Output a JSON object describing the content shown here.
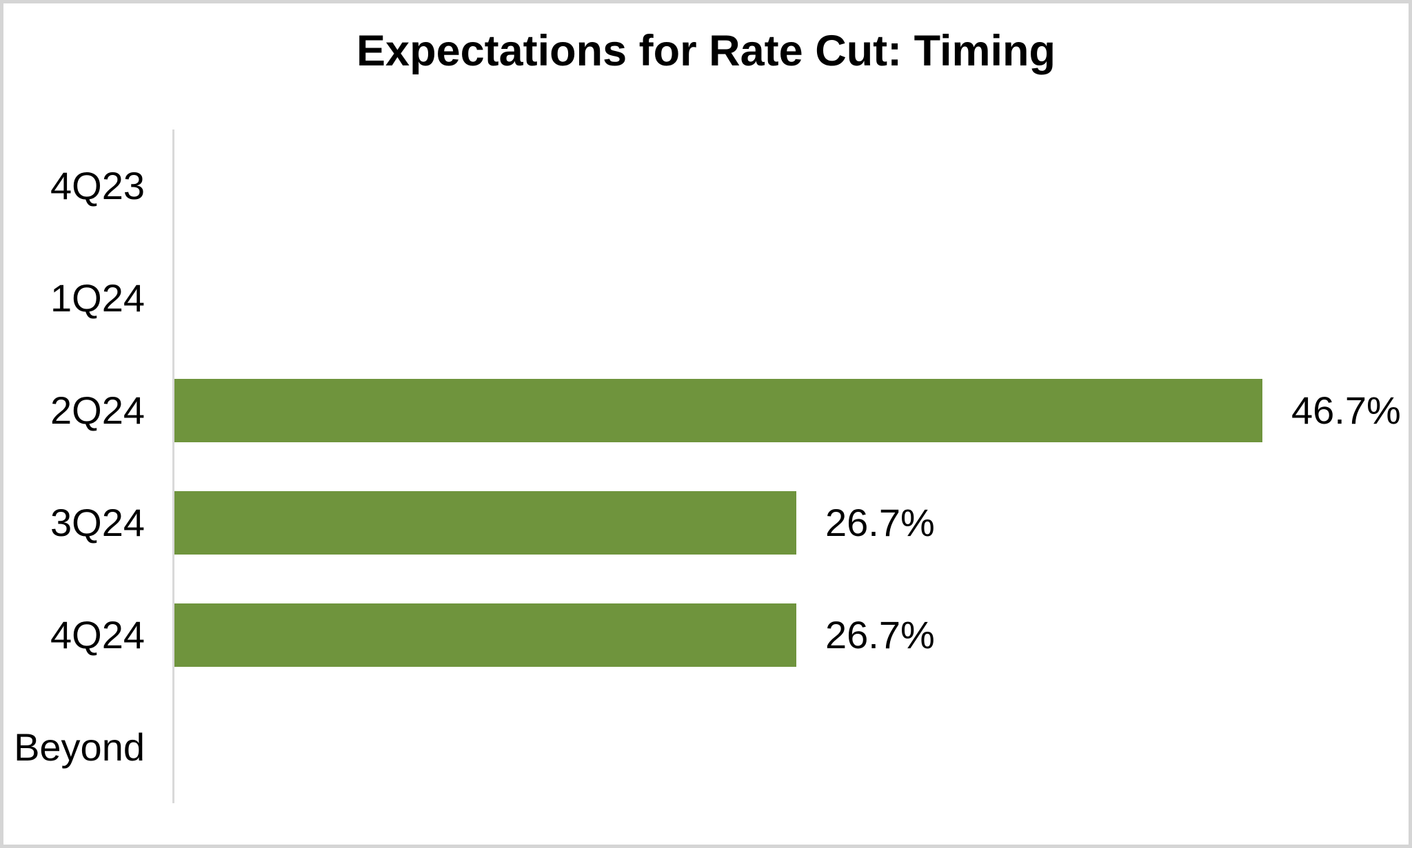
{
  "title": "Expectations for Rate Cut: Timing",
  "colors": {
    "bar": "#6F943D",
    "axis_line": "#D9D9D9",
    "frame_border": "#D5D5D5",
    "text": "#000000",
    "background": "#FFFFFF"
  },
  "chart_data": {
    "type": "bar",
    "orientation": "horizontal",
    "title": "Expectations for Rate Cut: Timing",
    "categories": [
      "4Q23",
      "1Q24",
      "2Q24",
      "3Q24",
      "4Q24",
      "Beyond"
    ],
    "values": [
      0,
      0,
      46.7,
      26.7,
      26.7,
      0
    ],
    "value_labels": [
      "",
      "",
      "46.7%",
      "26.7%",
      "26.7%",
      ""
    ],
    "xlabel": "",
    "ylabel": "",
    "xlim": [
      0,
      50
    ],
    "grid": false,
    "legend": null,
    "data_labels": true,
    "bar_color": "#6F943D"
  }
}
